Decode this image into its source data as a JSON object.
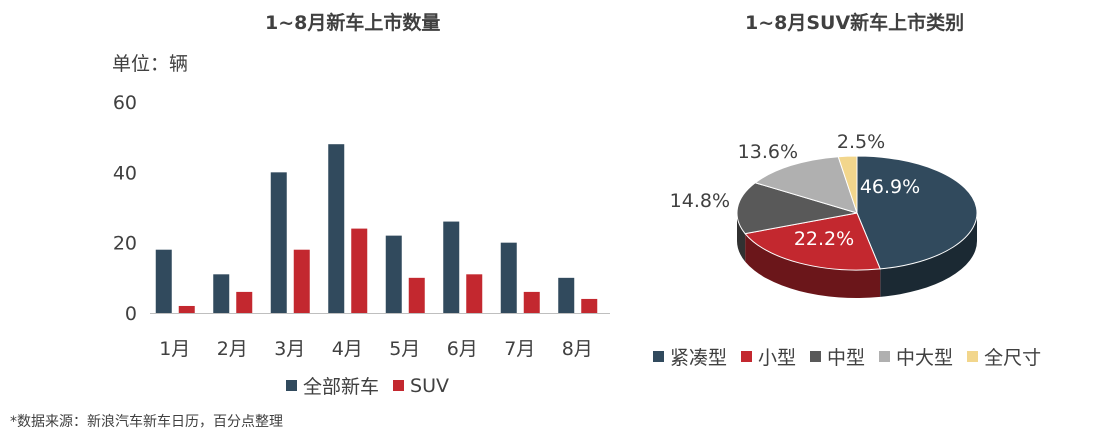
{
  "chart_data": [
    {
      "type": "bar",
      "title": "1~8月新车上市数量",
      "unit_label": "单位：辆",
      "categories": [
        "1月",
        "2月",
        "3月",
        "4月",
        "5月",
        "6月",
        "7月",
        "8月"
      ],
      "series": [
        {
          "name": "全部新车",
          "color": "#314a5d",
          "values": [
            18,
            11,
            40,
            48,
            22,
            26,
            20,
            10
          ]
        },
        {
          "name": "SUV",
          "color": "#c3282f",
          "values": [
            2,
            6,
            18,
            24,
            10,
            11,
            6,
            4
          ]
        }
      ],
      "ylim": [
        0,
        60
      ],
      "yticks": [
        "0",
        "20",
        "40",
        "60"
      ],
      "grid": false,
      "legend_position": "bottom"
    },
    {
      "type": "pie",
      "title": "1~8月SUV新车上市类别",
      "labels": [
        "紧凑型",
        "小型",
        "中型",
        "中大型",
        "全尺寸"
      ],
      "values": [
        46.9,
        22.2,
        14.8,
        13.6,
        2.5
      ],
      "value_labels": [
        "46.9%",
        "22.2%",
        "14.8%",
        "13.6%",
        "2.5%"
      ],
      "colors": [
        "#314a5d",
        "#c3282f",
        "#595959",
        "#b0b0b0",
        "#f2d68c"
      ],
      "legend_position": "bottom",
      "style": "3d"
    }
  ],
  "source_note": "*数据来源：新浪汽车新车日历，百分点整理"
}
